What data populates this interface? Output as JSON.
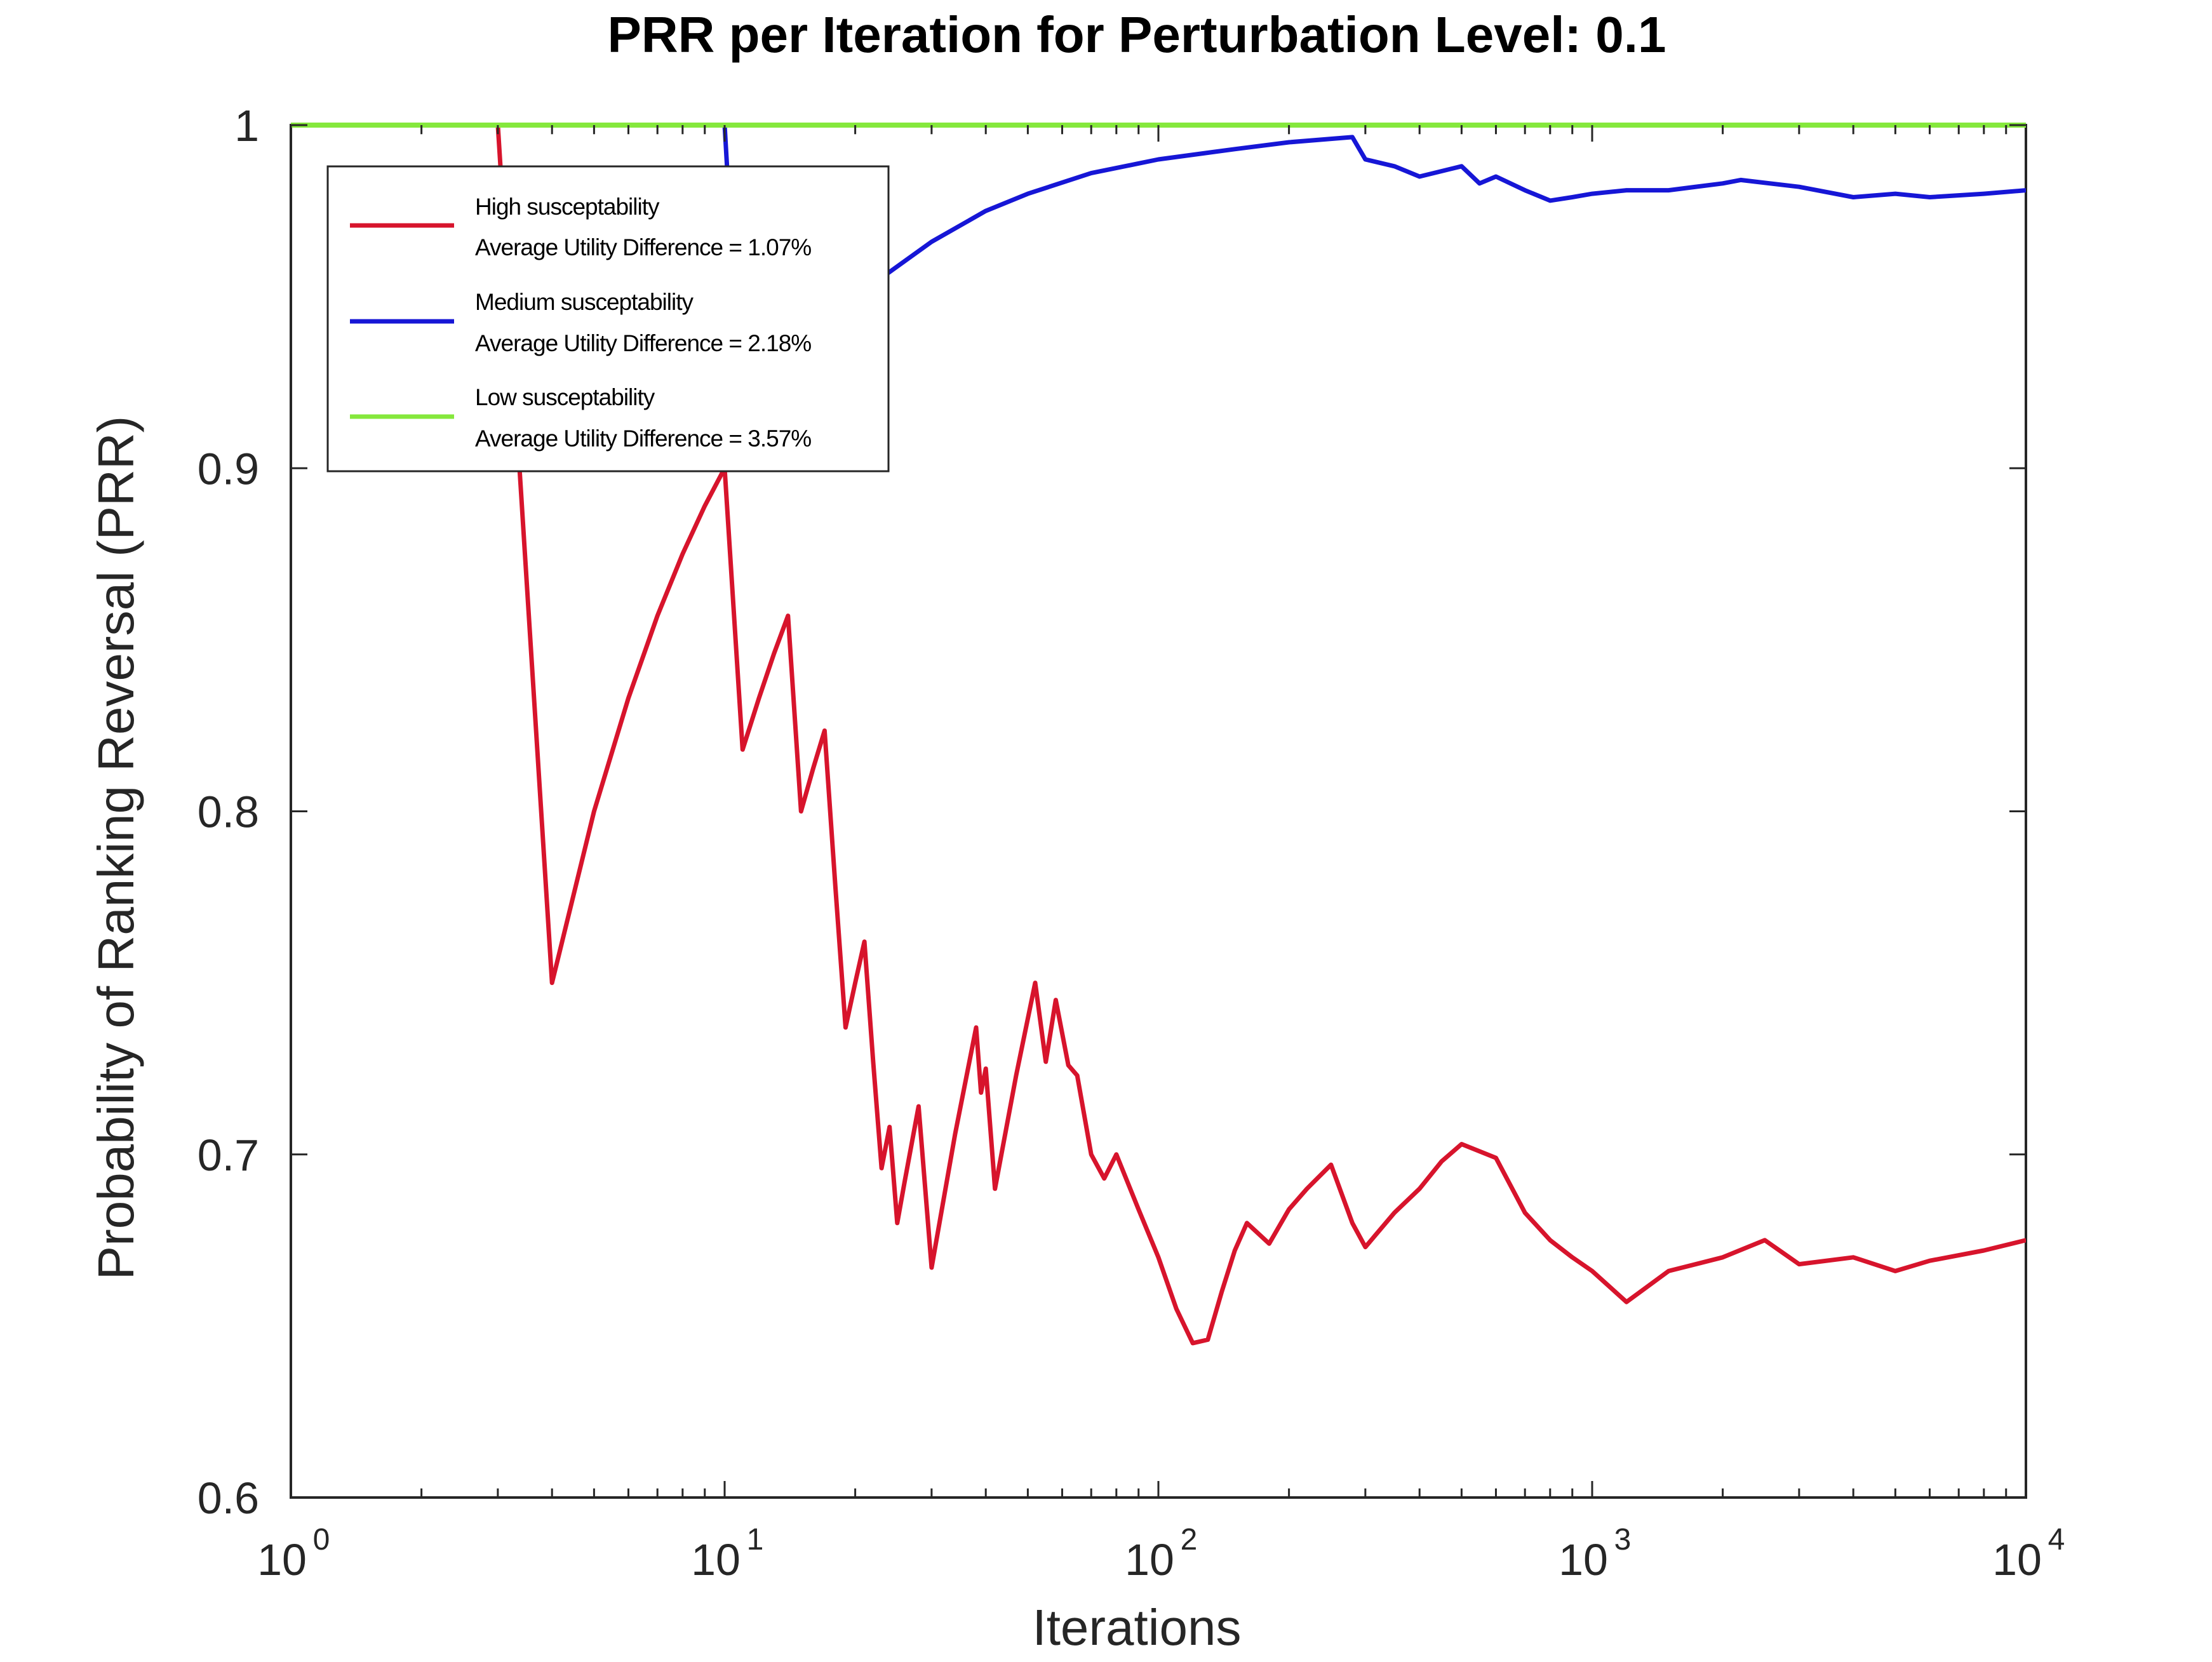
{
  "chart_data": {
    "type": "line",
    "title": "PRR per Iteration for Perturbation Level: 0.1",
    "xlabel": "Iterations",
    "ylabel": "Probability of Ranking Reversal (PRR)",
    "xscale": "log",
    "xlim": [
      1,
      10000
    ],
    "ylim": [
      0.6,
      1.0
    ],
    "xticks": [
      {
        "value": 1,
        "base": "10",
        "exp": "0"
      },
      {
        "value": 10,
        "base": "10",
        "exp": "1"
      },
      {
        "value": 100,
        "base": "10",
        "exp": "2"
      },
      {
        "value": 1000,
        "base": "10",
        "exp": "3"
      },
      {
        "value": 10000,
        "base": "10",
        "exp": "4"
      }
    ],
    "yticks": [
      {
        "value": 0.6,
        "label": "0.6"
      },
      {
        "value": 0.7,
        "label": "0.7"
      },
      {
        "value": 0.8,
        "label": "0.8"
      },
      {
        "value": 0.9,
        "label": "0.9"
      },
      {
        "value": 1.0,
        "label": "1"
      }
    ],
    "grid": false,
    "legend_position": "top-left",
    "series": [
      {
        "name": "High susceptability",
        "legend_line2": "Average Utility Difference = 1.07%",
        "color": "#d7142c",
        "points": [
          [
            1,
            1.0
          ],
          [
            2,
            1.0
          ],
          [
            3,
            1.0
          ],
          [
            4,
            0.75
          ],
          [
            5,
            0.8
          ],
          [
            6,
            0.833
          ],
          [
            7,
            0.857
          ],
          [
            8,
            0.875
          ],
          [
            9,
            0.889
          ],
          [
            10,
            0.9
          ],
          [
            11,
            0.818
          ],
          [
            12,
            0.833
          ],
          [
            13,
            0.846
          ],
          [
            14,
            0.857
          ],
          [
            15,
            0.8
          ],
          [
            16,
            0.8125
          ],
          [
            17,
            0.8235
          ],
          [
            18,
            0.778
          ],
          [
            19,
            0.737
          ],
          [
            20,
            0.75
          ],
          [
            21,
            0.762
          ],
          [
            22,
            0.727
          ],
          [
            23,
            0.696
          ],
          [
            24,
            0.708
          ],
          [
            25,
            0.68
          ],
          [
            26,
            0.692
          ],
          [
            28,
            0.714
          ],
          [
            30,
            0.667
          ],
          [
            34,
            0.706
          ],
          [
            38,
            0.737
          ],
          [
            39,
            0.718
          ],
          [
            40,
            0.725
          ],
          [
            42,
            0.69
          ],
          [
            47,
            0.723
          ],
          [
            52,
            0.75
          ],
          [
            55,
            0.727
          ],
          [
            58,
            0.745
          ],
          [
            62,
            0.726
          ],
          [
            65,
            0.723
          ],
          [
            70,
            0.7
          ],
          [
            75,
            0.693
          ],
          [
            80,
            0.7
          ],
          [
            90,
            0.684
          ],
          [
            100,
            0.67
          ],
          [
            110,
            0.655
          ],
          [
            120,
            0.645
          ],
          [
            130,
            0.646
          ],
          [
            140,
            0.66
          ],
          [
            150,
            0.672
          ],
          [
            160,
            0.68
          ],
          [
            180,
            0.674
          ],
          [
            200,
            0.684
          ],
          [
            220,
            0.69
          ],
          [
            250,
            0.697
          ],
          [
            280,
            0.68
          ],
          [
            300,
            0.673
          ],
          [
            350,
            0.683
          ],
          [
            400,
            0.69
          ],
          [
            450,
            0.698
          ],
          [
            500,
            0.703
          ],
          [
            600,
            0.699
          ],
          [
            700,
            0.683
          ],
          [
            800,
            0.675
          ],
          [
            900,
            0.67
          ],
          [
            1000,
            0.666
          ],
          [
            1200,
            0.657
          ],
          [
            1500,
            0.666
          ],
          [
            2000,
            0.67
          ],
          [
            2500,
            0.675
          ],
          [
            3000,
            0.668
          ],
          [
            4000,
            0.67
          ],
          [
            5000,
            0.666
          ],
          [
            6000,
            0.669
          ],
          [
            8000,
            0.672
          ],
          [
            10000,
            0.675
          ]
        ]
      },
      {
        "name": "Medium susceptability",
        "legend_line2": "Average Utility Difference = 2.18%",
        "color": "#1616d6",
        "points": [
          [
            1,
            1.0
          ],
          [
            10,
            1.0
          ],
          [
            11,
            0.909
          ],
          [
            15,
            0.933
          ],
          [
            20,
            0.95
          ],
          [
            30,
            0.966
          ],
          [
            40,
            0.975
          ],
          [
            50,
            0.98
          ],
          [
            70,
            0.986
          ],
          [
            100,
            0.99
          ],
          [
            150,
            0.993
          ],
          [
            200,
            0.995
          ],
          [
            280,
            0.9965
          ],
          [
            300,
            0.99
          ],
          [
            350,
            0.988
          ],
          [
            400,
            0.985
          ],
          [
            500,
            0.988
          ],
          [
            550,
            0.983
          ],
          [
            600,
            0.985
          ],
          [
            700,
            0.981
          ],
          [
            800,
            0.978
          ],
          [
            900,
            0.979
          ],
          [
            1000,
            0.98
          ],
          [
            1200,
            0.981
          ],
          [
            1500,
            0.981
          ],
          [
            2000,
            0.983
          ],
          [
            2200,
            0.984
          ],
          [
            3000,
            0.982
          ],
          [
            4000,
            0.979
          ],
          [
            5000,
            0.98
          ],
          [
            6000,
            0.979
          ],
          [
            8000,
            0.98
          ],
          [
            10000,
            0.981
          ]
        ]
      },
      {
        "name": "Low susceptability",
        "legend_line2": "Average Utility Difference = 3.57%",
        "color": "#85e83c",
        "points": [
          [
            1,
            1.0
          ],
          [
            10000,
            1.0
          ]
        ]
      }
    ]
  }
}
